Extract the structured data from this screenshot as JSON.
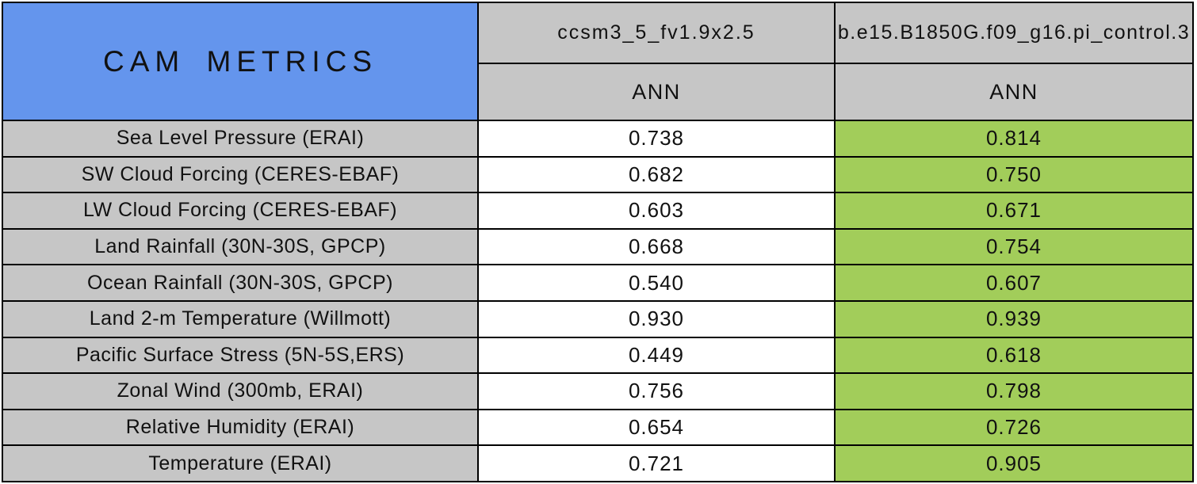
{
  "table": {
    "title": "CAM METRICS",
    "columns": [
      {
        "model": "ccsm3_5_fv1.9x2.5",
        "season": "ANN"
      },
      {
        "model": "b.e15.B1850G.f09_g16.pi_control.3",
        "season": "ANN"
      }
    ],
    "rows": [
      {
        "metric": "Sea Level Pressure (ERAI)",
        "values": [
          "0.738",
          "0.814"
        ]
      },
      {
        "metric": "SW Cloud Forcing (CERES-EBAF)",
        "values": [
          "0.682",
          "0.750"
        ]
      },
      {
        "metric": "LW Cloud Forcing (CERES-EBAF)",
        "values": [
          "0.603",
          "0.671"
        ]
      },
      {
        "metric": "Land Rainfall (30N-30S, GPCP)",
        "values": [
          "0.668",
          "0.754"
        ]
      },
      {
        "metric": "Ocean Rainfall (30N-30S, GPCP)",
        "values": [
          "0.540",
          "0.607"
        ]
      },
      {
        "metric": "Land 2-m Temperature (Willmott)",
        "values": [
          "0.930",
          "0.939"
        ]
      },
      {
        "metric": "Pacific Surface Stress (5N-5S,ERS)",
        "values": [
          "0.449",
          "0.618"
        ]
      },
      {
        "metric": "Zonal Wind (300mb, ERAI)",
        "values": [
          "0.756",
          "0.798"
        ]
      },
      {
        "metric": "Relative Humidity (ERAI)",
        "values": [
          "0.654",
          "0.726"
        ]
      },
      {
        "metric": "Temperature (ERAI)",
        "values": [
          "0.721",
          "0.905"
        ]
      }
    ],
    "colors": {
      "title_blue": "#6495ED",
      "header_gray": "#C6C6C6",
      "label_gray": "#C6C6C6",
      "value_white": "#FFFFFF",
      "value_green": "#A2CD5A",
      "border": "#000000",
      "text": "#111111"
    }
  },
  "chart_data": {
    "type": "table",
    "title": "CAM METRICS",
    "column_groups": [
      "ccsm3_5_fv1.9x2.5",
      "b.e15.B1850G.f09_g16.pi_control.3"
    ],
    "subcolumns": [
      "ANN",
      "ANN"
    ],
    "categories": [
      "Sea Level Pressure (ERAI)",
      "SW Cloud Forcing (CERES-EBAF)",
      "LW Cloud Forcing (CERES-EBAF)",
      "Land Rainfall (30N-30S, GPCP)",
      "Ocean Rainfall (30N-30S, GPCP)",
      "Land 2-m Temperature (Willmott)",
      "Pacific Surface Stress (5N-5S,ERS)",
      "Zonal Wind (300mb, ERAI)",
      "Relative Humidity (ERAI)",
      "Temperature (ERAI)"
    ],
    "series": [
      {
        "name": "ccsm3_5_fv1.9x2.5 ANN",
        "values": [
          0.738,
          0.682,
          0.603,
          0.668,
          0.54,
          0.93,
          0.449,
          0.756,
          0.654,
          0.721
        ]
      },
      {
        "name": "b.e15.B1850G.f09_g16.pi_control.3 ANN",
        "values": [
          0.814,
          0.75,
          0.671,
          0.754,
          0.607,
          0.939,
          0.618,
          0.798,
          0.726,
          0.905
        ]
      }
    ],
    "notes": "Second model column values highlighted green; second model header text overflows its cell and is clipped at the table right edge."
  }
}
